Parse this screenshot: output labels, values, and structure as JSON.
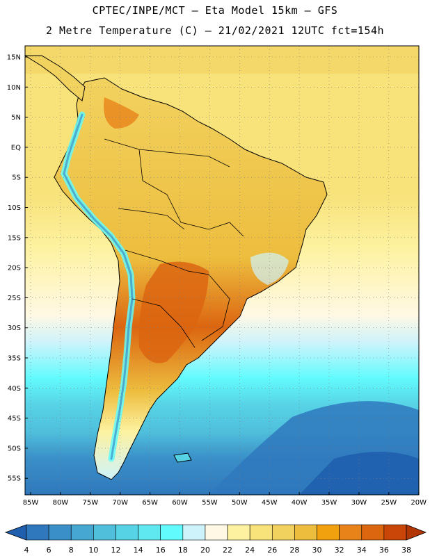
{
  "header": {
    "line1": "CPTEC/INPE/MCT  –  Eta Model 15km – GFS",
    "line2": "2 Metre Temperature (C) – 21/02/2021 12UTC fct=154h"
  },
  "axes": {
    "lat_labels": [
      "15N",
      "10N",
      "5N",
      "EQ",
      "5S",
      "10S",
      "15S",
      "20S",
      "25S",
      "30S",
      "35S",
      "40S",
      "45S",
      "50S",
      "55S"
    ],
    "lon_labels": [
      "85W",
      "80W",
      "75W",
      "70W",
      "65W",
      "60W",
      "55W",
      "50W",
      "45W",
      "40W",
      "35W",
      "30W",
      "25W",
      "20W"
    ]
  },
  "colorbar": {
    "labels": [
      "4",
      "6",
      "8",
      "10",
      "12",
      "14",
      "16",
      "18",
      "20",
      "22",
      "24",
      "26",
      "28",
      "30",
      "32",
      "34",
      "36",
      "38"
    ],
    "colors": [
      "#1f5fae",
      "#2f78bd",
      "#3a8fc8",
      "#46a7d3",
      "#4fbfdc",
      "#57d3e6",
      "#5fe8f0",
      "#62fbfd",
      "#cff3fb",
      "#fff8e4",
      "#fdf2a0",
      "#f8e27a",
      "#f2d25f",
      "#edbd3e",
      "#f2a10e",
      "#e88319",
      "#dc6510",
      "#c94608",
      "#b23504"
    ]
  },
  "colors": {
    "ocean_north": "#f8e27a",
    "land": "#edbd3e",
    "border": "#000000"
  }
}
